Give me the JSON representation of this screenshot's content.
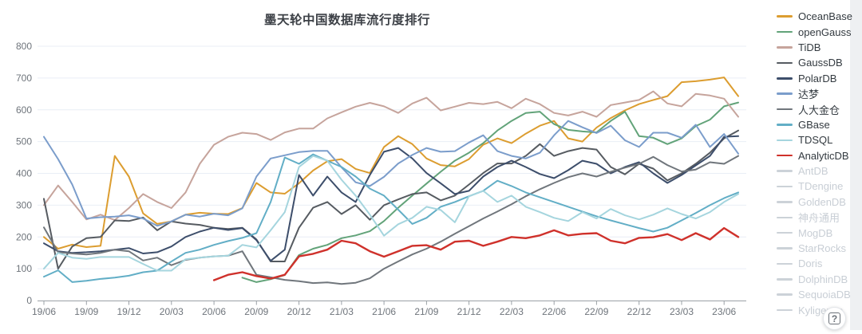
{
  "header": {
    "title": "墨天轮中国数据库流行度排行"
  },
  "help_button": {
    "label": "?"
  },
  "chart_data": {
    "type": "line",
    "title": "墨天轮中国数据库流行度排行",
    "xlabel": "",
    "ylabel": "",
    "ylim": [
      0,
      800
    ],
    "y_ticks": [
      0,
      100,
      200,
      300,
      400,
      500,
      600,
      700,
      800
    ],
    "grid": true,
    "legend_position": "right",
    "axis_color": "#9aa0a6",
    "grid_color": "#e9eef6",
    "tick_label_color": "#6e747b",
    "disabled_color": "#ccd2d8",
    "x_tick_every": 3,
    "x": [
      "19/06",
      "19/07",
      "19/08",
      "19/09",
      "19/10",
      "19/11",
      "19/12",
      "20/01",
      "20/02",
      "20/03",
      "20/04",
      "20/05",
      "20/06",
      "20/07",
      "20/08",
      "20/09",
      "20/10",
      "20/11",
      "20/12",
      "21/01",
      "21/02",
      "21/03",
      "21/04",
      "21/05",
      "21/06",
      "21/07",
      "21/08",
      "21/09",
      "21/10",
      "21/11",
      "21/12",
      "22/01",
      "22/02",
      "22/03",
      "22/04",
      "22/05",
      "22/06",
      "22/07",
      "22/08",
      "22/09",
      "22/10",
      "22/11",
      "22/12",
      "23/01",
      "23/02",
      "23/03",
      "23/04",
      "23/05",
      "23/06",
      "23/07"
    ],
    "series": [
      {
        "name": "OceanBase",
        "color": "#dc9d30",
        "width": 2,
        "values": [
          200,
          163,
          176,
          168,
          172,
          455,
          390,
          274,
          241,
          249,
          270,
          276,
          273,
          272,
          291,
          370,
          340,
          336,
          369,
          409,
          438,
          445,
          414,
          401,
          483,
          517,
          492,
          447,
          426,
          422,
          445,
          490,
          510,
          495,
          525,
          550,
          565,
          510,
          500,
          544,
          574,
          598,
          618,
          631,
          643,
          687,
          690,
          695,
          702,
          643
        ]
      },
      {
        "name": "openGauss",
        "color": "#62a379",
        "width": 2,
        "values": [
          null,
          null,
          null,
          null,
          null,
          null,
          null,
          null,
          null,
          null,
          null,
          null,
          null,
          null,
          72,
          58,
          67,
          80,
          143,
          163,
          175,
          196,
          205,
          218,
          250,
          292,
          330,
          368,
          405,
          440,
          465,
          495,
          535,
          565,
          590,
          594,
          555,
          537,
          532,
          529,
          565,
          594,
          517,
          512,
          492,
          510,
          549,
          569,
          611,
          623
        ]
      },
      {
        "name": "TiDB",
        "color": "#c6a49c",
        "width": 2,
        "values": [
          300,
          362,
          310,
          255,
          270,
          253,
          291,
          335,
          310,
          291,
          340,
          430,
          490,
          515,
          528,
          524,
          505,
          529,
          541,
          541,
          573,
          592,
          610,
          622,
          611,
          590,
          620,
          638,
          598,
          610,
          622,
          618,
          625,
          605,
          635,
          618,
          590,
          582,
          594,
          578,
          615,
          623,
          631,
          658,
          620,
          611,
          650,
          645,
          635,
          578
        ]
      },
      {
        "name": "GaussDB",
        "color": "#565b61",
        "width": 2,
        "values": [
          320,
          100,
          170,
          196,
          200,
          252,
          250,
          261,
          221,
          249,
          242,
          238,
          229,
          225,
          229,
          192,
          123,
          123,
          229,
          292,
          310,
          272,
          300,
          254,
          300,
          318,
          335,
          340,
          315,
          330,
          365,
          401,
          431,
          431,
          455,
          492,
          455,
          470,
          480,
          475,
          420,
          397,
          430,
          415,
          378,
          400,
          430,
          465,
          510,
          535
        ]
      },
      {
        "name": "PolarDB",
        "color": "#3d4e6b",
        "width": 2,
        "values": [
          180,
          155,
          150,
          152,
          155,
          160,
          165,
          148,
          152,
          170,
          200,
          217,
          229,
          222,
          228,
          190,
          125,
          160,
          395,
          330,
          390,
          340,
          310,
          395,
          468,
          480,
          447,
          401,
          369,
          335,
          345,
          390,
          420,
          440,
          420,
          398,
          385,
          410,
          440,
          430,
          400,
          420,
          435,
          400,
          370,
          395,
          425,
          455,
          515,
          517
        ]
      },
      {
        "name": "达梦",
        "color": "#7b9dcb",
        "width": 2,
        "values": [
          515,
          445,
          365,
          258,
          262,
          264,
          268,
          258,
          235,
          249,
          270,
          264,
          273,
          268,
          290,
          390,
          447,
          457,
          467,
          471,
          471,
          419,
          372,
          360,
          389,
          431,
          458,
          480,
          468,
          470,
          497,
          520,
          470,
          455,
          447,
          465,
          520,
          565,
          545,
          527,
          550,
          504,
          483,
          528,
          528,
          512,
          553,
          483,
          524,
          462
        ]
      },
      {
        "name": "人大金仓",
        "color": "#70767c",
        "width": 2,
        "values": [
          230,
          152,
          148,
          145,
          150,
          160,
          155,
          126,
          135,
          111,
          128,
          135,
          139,
          141,
          155,
          81,
          73,
          65,
          61,
          55,
          57,
          52,
          56,
          70,
          100,
          123,
          145,
          163,
          185,
          210,
          234,
          258,
          280,
          303,
          328,
          350,
          370,
          388,
          400,
          390,
          405,
          418,
          430,
          452,
          426,
          406,
          412,
          435,
          430,
          455
        ]
      },
      {
        "name": "GBase",
        "color": "#62aec6",
        "width": 2,
        "values": [
          75,
          95,
          58,
          62,
          68,
          72,
          78,
          89,
          94,
          123,
          150,
          160,
          175,
          187,
          197,
          212,
          310,
          450,
          430,
          460,
          440,
          420,
          390,
          352,
          330,
          286,
          241,
          260,
          295,
          310,
          328,
          345,
          377,
          360,
          340,
          325,
          310,
          295,
          280,
          265,
          252,
          240,
          228,
          217,
          229,
          252,
          275,
          300,
          322,
          340
        ]
      },
      {
        "name": "TDSQL",
        "color": "#a5d5de",
        "width": 2,
        "values": [
          100,
          150,
          135,
          131,
          137,
          137,
          137,
          115,
          94,
          94,
          130,
          135,
          139,
          141,
          175,
          167,
          221,
          278,
          420,
          455,
          440,
          380,
          330,
          270,
          204,
          240,
          260,
          295,
          285,
          246,
          328,
          345,
          310,
          330,
          295,
          278,
          260,
          250,
          278,
          258,
          288,
          268,
          255,
          270,
          290,
          272,
          258,
          278,
          310,
          335
        ]
      },
      {
        "name": "AnalyticDB",
        "color": "#cf312b",
        "width": 2.4,
        "values": [
          null,
          null,
          null,
          null,
          null,
          null,
          null,
          null,
          null,
          null,
          null,
          null,
          64,
          81,
          89,
          77,
          69,
          81,
          139,
          147,
          160,
          188,
          180,
          155,
          138,
          155,
          172,
          174,
          160,
          185,
          188,
          172,
          185,
          200,
          196,
          205,
          221,
          205,
          210,
          212,
          188,
          180,
          197,
          199,
          209,
          190,
          212,
          192,
          228,
          200
        ]
      }
    ],
    "disabled_series": [
      {
        "name": "AntDB"
      },
      {
        "name": "TDengine"
      },
      {
        "name": "GoldenDB"
      },
      {
        "name": "神舟通用"
      },
      {
        "name": "MogDB"
      },
      {
        "name": "StarRocks"
      },
      {
        "name": "Doris"
      },
      {
        "name": "DolphinDB"
      },
      {
        "name": "SequoiaDB"
      },
      {
        "name": "Kyligence"
      }
    ]
  }
}
